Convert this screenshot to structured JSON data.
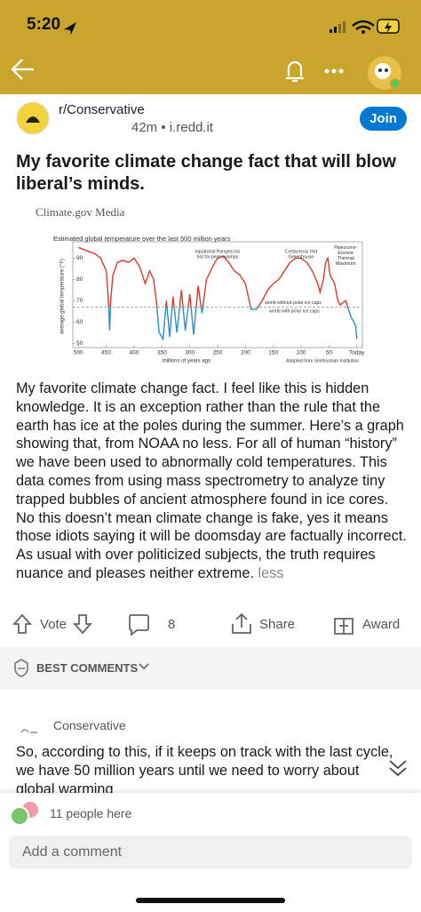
{
  "status_bar": {
    "time": "5:20"
  },
  "post": {
    "subreddit": "r/Conservative",
    "age": "42m",
    "source": "i.redd.it",
    "join": "Join",
    "title": "My favorite climate change fact that will blow liberal’s minds.",
    "image": {
      "credit": "Climate.gov Media",
      "chart": {
        "type": "line",
        "title": "Estimated global temperature over the last 500 million years",
        "x_label": "millions of years ago",
        "y_label": "average global temperature (°F)",
        "source_note": "Adapted from Smithsonian Institution",
        "xlim": [
          510,
          -10
        ],
        "ylim": [
          48,
          96
        ],
        "xticks": [
          500,
          450,
          400,
          350,
          300,
          250,
          200,
          150,
          100,
          50,
          {
            "value": 0,
            "label": "Today"
          }
        ],
        "yticks": [
          50,
          60,
          70,
          80,
          90
        ],
        "reference_line": 67,
        "colors": {
          "above": "#d63b2c",
          "below": "#2b8fc6",
          "reference": "#888888"
        },
        "annotations": [
          {
            "lines": [
              "equatorial Pangea too",
              "hot for peat swamps"
            ],
            "x": 250,
            "y": 93
          },
          {
            "lines": [
              "Cretaceous Hot",
              "Greenhouse"
            ],
            "x": 100,
            "y": 93
          },
          {
            "lines": [
              "Paleocene-",
              "Eocene",
              "Thermal",
              "Maximum"
            ],
            "x": 20,
            "y": 95
          },
          {
            "lines": [
              "world without polar ice caps"
            ],
            "x": 165,
            "y": 69
          },
          {
            "lines": [
              "world with polar ice caps"
            ],
            "x": 157,
            "y": 65
          }
        ],
        "x": [
          500,
          490,
          470,
          460,
          450,
          446,
          444,
          442,
          438,
          430,
          420,
          410,
          400,
          390,
          380,
          372,
          365,
          360,
          355,
          348,
          342,
          336,
          330,
          323,
          315,
          308,
          300,
          293,
          285,
          278,
          270,
          255,
          250,
          240,
          230,
          220,
          210,
          200,
          195,
          190,
          180,
          170,
          160,
          150,
          140,
          130,
          120,
          110,
          100,
          90,
          80,
          70,
          66,
          60,
          56,
          52,
          48,
          40,
          34,
          30,
          20,
          15,
          10,
          5,
          2,
          0
        ],
        "values": [
          95,
          94,
          92,
          90,
          84,
          70,
          56,
          70,
          82,
          88,
          89,
          88,
          90,
          86,
          78,
          84,
          80,
          70,
          55,
          52,
          70,
          53,
          72,
          55,
          75,
          56,
          73,
          54,
          77,
          64,
          80,
          88,
          90,
          91,
          88,
          84,
          82,
          78,
          72,
          66,
          66,
          70,
          75,
          78,
          80,
          84,
          88,
          90,
          90,
          88,
          84,
          78,
          74,
          80,
          88,
          90,
          82,
          78,
          70,
          68,
          70,
          66,
          62,
          60,
          58,
          52
        ]
      }
    },
    "body": "My favorite climate change fact. I feel like this is hidden knowledge. It is an exception rather than the rule that the earth has ice at the poles during the summer. Here’s a graph showing that, from NOAA no less. For all of human “history” we have been used to abnormally cold temperatures. This data comes from using mass spectrometry to analyze tiny trapped bubbles of ancient atmosphere found in ice cores. No this doesn’t mean climate change is fake, yes it means those idiots saying it will be doomsday are factually incorrect. As usual with over politicized subjects, the truth requires nuance and pleases neither extreme.",
    "less": "less"
  },
  "actions": {
    "vote": "Vote",
    "comments": "8",
    "share": "Share",
    "award": "Award"
  },
  "best_comments": "BEST COMMENTS",
  "comment": {
    "flair": "Conservative",
    "text": "So, according to this, if it keeps on track with the last cycle, we have 50 million years until we need to worry about global warming"
  },
  "presence": "11 people here",
  "comment_input": "Add a comment"
}
